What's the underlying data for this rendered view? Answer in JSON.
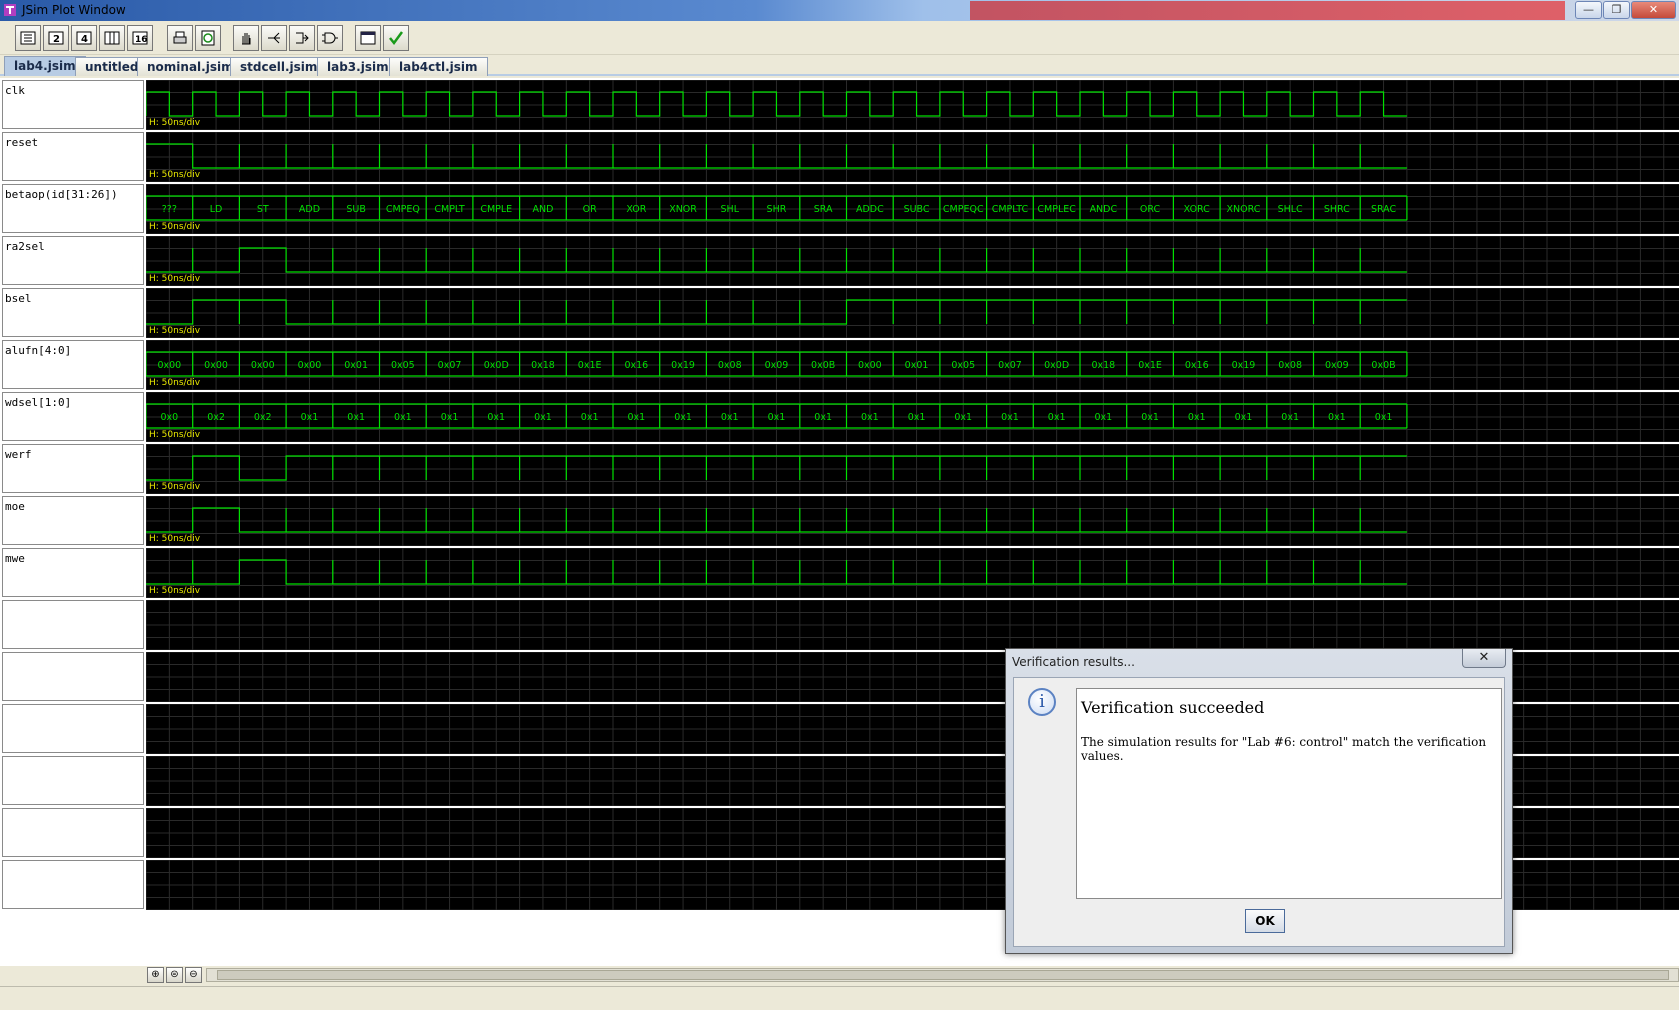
{
  "window": {
    "title": "JSim Plot Window"
  },
  "toolbar": {
    "buttons": [
      "view-1-icon",
      "view-2-icon",
      "view-3-icon",
      "view-4-icon",
      "view-5-icon",
      "print-icon",
      "refresh-icon",
      "hand-icon",
      "fork-icon",
      "split-icon",
      "gate-icon",
      "window-icon",
      "checkmark-icon"
    ]
  },
  "tabs": [
    "lab4.jsim",
    "untitled",
    "nominal.jsim",
    "stdcell.jsim",
    "lab3.jsim",
    "lab4ctl.jsim"
  ],
  "active_tab": "lab4.jsim",
  "scale_label": "H: 50ns/div",
  "signals": [
    {
      "name": "clk",
      "kind": "clock"
    },
    {
      "name": "reset",
      "kind": "digital",
      "levels": [
        1,
        0,
        0,
        0,
        0,
        0,
        0,
        0,
        0,
        0,
        0,
        0,
        0,
        0,
        0,
        0,
        0,
        0,
        0,
        0,
        0,
        0,
        0,
        0,
        0,
        0,
        0
      ]
    },
    {
      "name": "betaop(id[31:26])",
      "kind": "bus",
      "values": [
        "???",
        "LD",
        "ST",
        "ADD",
        "SUB",
        "CMPEQ",
        "CMPLT",
        "CMPLE",
        "AND",
        "OR",
        "XOR",
        "XNOR",
        "SHL",
        "SHR",
        "SRA",
        "ADDC",
        "SUBC",
        "CMPEQC",
        "CMPLTC",
        "CMPLEC",
        "ANDC",
        "ORC",
        "XORC",
        "XNORC",
        "SHLC",
        "SHRC",
        "SRAC"
      ]
    },
    {
      "name": "ra2sel",
      "kind": "digital",
      "levels": [
        0,
        0,
        1,
        0,
        0,
        0,
        0,
        0,
        0,
        0,
        0,
        0,
        0,
        0,
        0,
        0,
        0,
        0,
        0,
        0,
        0,
        0,
        0,
        0,
        0,
        0,
        0
      ]
    },
    {
      "name": "bsel",
      "kind": "digital",
      "levels": [
        0,
        1,
        1,
        0,
        0,
        0,
        0,
        0,
        0,
        0,
        0,
        0,
        0,
        0,
        0,
        1,
        1,
        1,
        1,
        1,
        1,
        1,
        1,
        1,
        1,
        1,
        1
      ]
    },
    {
      "name": "alufn[4:0]",
      "kind": "bus",
      "values": [
        "0x00",
        "0x00",
        "0x00",
        "0x00",
        "0x01",
        "0x05",
        "0x07",
        "0x0D",
        "0x18",
        "0x1E",
        "0x16",
        "0x19",
        "0x08",
        "0x09",
        "0x0B",
        "0x00",
        "0x01",
        "0x05",
        "0x07",
        "0x0D",
        "0x18",
        "0x1E",
        "0x16",
        "0x19",
        "0x08",
        "0x09",
        "0x0B"
      ]
    },
    {
      "name": "wdsel[1:0]",
      "kind": "bus",
      "values": [
        "0x0",
        "0x2",
        "0x2",
        "0x1",
        "0x1",
        "0x1",
        "0x1",
        "0x1",
        "0x1",
        "0x1",
        "0x1",
        "0x1",
        "0x1",
        "0x1",
        "0x1",
        "0x1",
        "0x1",
        "0x1",
        "0x1",
        "0x1",
        "0x1",
        "0x1",
        "0x1",
        "0x1",
        "0x1",
        "0x1",
        "0x1"
      ]
    },
    {
      "name": "werf",
      "kind": "digital",
      "levels": [
        0,
        1,
        0,
        1,
        1,
        1,
        1,
        1,
        1,
        1,
        1,
        1,
        1,
        1,
        1,
        1,
        1,
        1,
        1,
        1,
        1,
        1,
        1,
        1,
        1,
        1,
        1
      ]
    },
    {
      "name": "moe",
      "kind": "digital",
      "levels": [
        0,
        1,
        0,
        0,
        0,
        0,
        0,
        0,
        0,
        0,
        0,
        0,
        0,
        0,
        0,
        0,
        0,
        0,
        0,
        0,
        0,
        0,
        0,
        0,
        0,
        0,
        0
      ]
    },
    {
      "name": "mwe",
      "kind": "digital",
      "levels": [
        0,
        0,
        1,
        0,
        0,
        0,
        0,
        0,
        0,
        0,
        0,
        0,
        0,
        0,
        0,
        0,
        0,
        0,
        0,
        0,
        0,
        0,
        0,
        0,
        0,
        0,
        0
      ]
    },
    {
      "name": "",
      "kind": "empty"
    },
    {
      "name": "",
      "kind": "empty"
    },
    {
      "name": "",
      "kind": "empty"
    },
    {
      "name": "",
      "kind": "empty"
    },
    {
      "name": "",
      "kind": "empty"
    },
    {
      "name": "",
      "kind": "empty"
    }
  ],
  "colors": {
    "trace": "#00e000",
    "grid": "#2a2a2a",
    "background": "#000000",
    "scale_text": "#e8e800"
  },
  "dialog": {
    "title": "Verification results...",
    "close": "✕",
    "heading": "Verification succeeded",
    "message": "The simulation results for \"Lab #6: control\" match the verification values.",
    "ok_label": "OK"
  }
}
